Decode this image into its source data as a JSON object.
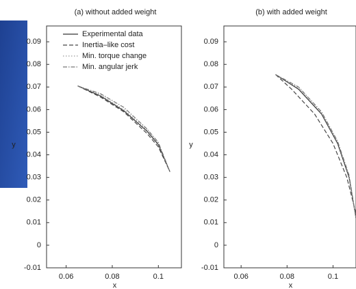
{
  "chart_data": [
    {
      "type": "line",
      "title": "(a) without added weight",
      "x_label": "x",
      "y_label": "y",
      "xlim": [
        0.0515,
        0.11
      ],
      "ylim": [
        -0.01,
        0.097
      ],
      "xticks": [
        0.06,
        0.08,
        0.1
      ],
      "yticks": [
        -0.01,
        0,
        0.01,
        0.02,
        0.03,
        0.04,
        0.05,
        0.06,
        0.07,
        0.08,
        0.09
      ],
      "legend": "upper left",
      "series": [
        {
          "name": "Experimental data",
          "color": "#333333",
          "dash": "solid",
          "x": [
            0.065,
            0.075,
            0.085,
            0.095,
            0.1,
            0.105
          ],
          "values": [
            0.0705,
            0.066,
            0.0595,
            0.0505,
            0.0445,
            0.0325
          ]
        },
        {
          "name": "Inertia–like cost",
          "color": "#444444",
          "dash": "dash",
          "x": [
            0.065,
            0.075,
            0.085,
            0.095,
            0.1,
            0.105
          ],
          "values": [
            0.0705,
            0.0655,
            0.059,
            0.0495,
            0.0435,
            0.0325
          ]
        },
        {
          "name": "Min. torque change",
          "color": "#999999",
          "dash": "dot",
          "x": [
            0.065,
            0.075,
            0.085,
            0.095,
            0.1,
            0.105
          ],
          "values": [
            0.0705,
            0.0665,
            0.06,
            0.051,
            0.045,
            0.0325
          ]
        },
        {
          "name": "Min. angular jerk",
          "color": "#777777",
          "dash": "dashdot",
          "x": [
            0.065,
            0.075,
            0.085,
            0.095,
            0.1,
            0.105
          ],
          "values": [
            0.0705,
            0.067,
            0.061,
            0.0515,
            0.0455,
            0.0325
          ]
        }
      ]
    },
    {
      "type": "line",
      "title": "(b) with added weight",
      "x_label": "x",
      "y_label": "y",
      "xlim": [
        0.0525,
        0.11
      ],
      "ylim": [
        -0.01,
        0.097
      ],
      "xticks": [
        0.06,
        0.08,
        0.1
      ],
      "yticks": [
        -0.01,
        0,
        0.01,
        0.02,
        0.03,
        0.04,
        0.05,
        0.06,
        0.07,
        0.08,
        0.09
      ],
      "series": [
        {
          "color": "#333333",
          "dash": "solid",
          "x": [
            0.075,
            0.085,
            0.095,
            0.102,
            0.107,
            0.11
          ],
          "values": [
            0.0755,
            0.069,
            0.058,
            0.045,
            0.03,
            0.012
          ]
        },
        {
          "color": "#444444",
          "dash": "dash",
          "x": [
            0.075,
            0.082,
            0.092,
            0.1,
            0.106,
            0.11
          ],
          "values": [
            0.0755,
            0.069,
            0.058,
            0.045,
            0.03,
            0.014
          ]
        },
        {
          "color": "#999999",
          "dash": "dot",
          "x": [
            0.075,
            0.085,
            0.095,
            0.102,
            0.107,
            0.11
          ],
          "values": [
            0.0755,
            0.0695,
            0.0585,
            0.0455,
            0.0305,
            0.012
          ]
        },
        {
          "color": "#777777",
          "dash": "dashdot",
          "x": [
            0.075,
            0.085,
            0.095,
            0.102,
            0.107,
            0.11
          ],
          "values": [
            0.0755,
            0.07,
            0.059,
            0.046,
            0.031,
            0.012
          ]
        }
      ]
    }
  ]
}
